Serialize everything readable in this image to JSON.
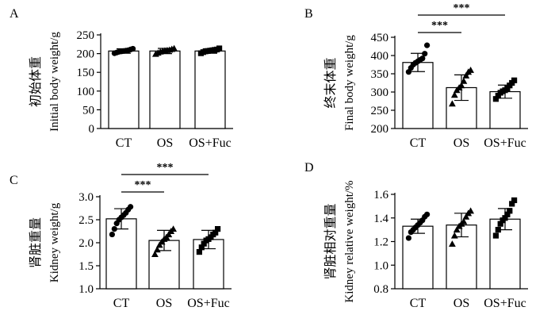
{
  "chart_data": [
    {
      "panel": "A",
      "type": "bar",
      "categories": [
        "CT",
        "OS",
        "OS+Fuc"
      ],
      "ylabel_zh": "初始体重",
      "ylabel_en": "Initial body weight/g",
      "ylim": [
        0,
        250
      ],
      "yticks": [
        0,
        50,
        100,
        150,
        200,
        250
      ],
      "means": [
        207,
        207,
        207
      ],
      "sd": [
        6,
        7,
        6
      ],
      "markers": [
        "circle",
        "triangle",
        "square"
      ],
      "points": [
        [
          201,
          203,
          205,
          206,
          207,
          208,
          209,
          211,
          213
        ],
        [
          199,
          202,
          205,
          207,
          208,
          209,
          210,
          212,
          214
        ],
        [
          201,
          204,
          206,
          207,
          208,
          209,
          210,
          211,
          214
        ]
      ],
      "significance": []
    },
    {
      "panel": "B",
      "type": "bar",
      "categories": [
        "CT",
        "OS",
        "OS+Fuc"
      ],
      "ylabel_zh": "终末体重",
      "ylabel_en": "Final body weight/g",
      "ylim": [
        200,
        450
      ],
      "yticks": [
        200,
        250,
        300,
        350,
        400,
        450
      ],
      "means": [
        381,
        312,
        301
      ],
      "sd": [
        25,
        35,
        18
      ],
      "markers": [
        "circle",
        "triangle",
        "square"
      ],
      "points": [
        [
          355,
          366,
          375,
          380,
          384,
          388,
          392,
          405,
          428
        ],
        [
          268,
          292,
          305,
          312,
          318,
          330,
          345,
          355,
          360
        ],
        [
          281,
          290,
          298,
          302,
          305,
          310,
          318,
          325,
          332
        ]
      ],
      "significance": [
        {
          "from": 0,
          "to": 1,
          "label": "***",
          "level": 0
        },
        {
          "from": 0,
          "to": 2,
          "label": "***",
          "level": 1
        }
      ]
    },
    {
      "panel": "C",
      "type": "bar",
      "categories": [
        "CT",
        "OS",
        "OS+Fuc"
      ],
      "ylabel_zh": "肾脏重量",
      "ylabel_en": "Kidney weight/g",
      "ylim": [
        1.0,
        3.0
      ],
      "yticks": [
        "1.0",
        "1.5",
        "2.0",
        "2.5",
        "3.0"
      ],
      "means": [
        2.52,
        2.05,
        2.07
      ],
      "sd": [
        0.22,
        0.22,
        0.2
      ],
      "markers": [
        "circle",
        "triangle",
        "square"
      ],
      "points": [
        [
          2.18,
          2.3,
          2.42,
          2.5,
          2.55,
          2.6,
          2.65,
          2.72,
          2.78
        ],
        [
          1.75,
          1.85,
          1.95,
          2.02,
          2.08,
          2.12,
          2.18,
          2.25,
          2.3
        ],
        [
          1.8,
          1.9,
          1.98,
          2.05,
          2.08,
          2.12,
          2.18,
          2.22,
          2.3
        ]
      ],
      "significance": [
        {
          "from": 0,
          "to": 1,
          "label": "***",
          "level": 0
        },
        {
          "from": 0,
          "to": 2,
          "label": "***",
          "level": 1
        }
      ]
    },
    {
      "panel": "D",
      "type": "bar",
      "categories": [
        "CT",
        "OS",
        "OS+Fuc"
      ],
      "ylabel_zh": "肾脏相对重量",
      "ylabel_en": "Kidney relative weight/%",
      "ylim": [
        0.8,
        1.6
      ],
      "yticks": [
        "0.8",
        "1.0",
        "1.2",
        "1.4",
        "1.6"
      ],
      "means": [
        1.33,
        1.34,
        1.39
      ],
      "sd": [
        0.06,
        0.1,
        0.09
      ],
      "markers": [
        "circle",
        "triangle",
        "square"
      ],
      "points": [
        [
          1.23,
          1.28,
          1.3,
          1.32,
          1.34,
          1.36,
          1.38,
          1.41,
          1.43
        ],
        [
          1.18,
          1.25,
          1.3,
          1.33,
          1.35,
          1.37,
          1.41,
          1.44,
          1.46
        ],
        [
          1.25,
          1.3,
          1.35,
          1.38,
          1.4,
          1.43,
          1.46,
          1.52,
          1.55
        ]
      ],
      "significance": []
    }
  ]
}
